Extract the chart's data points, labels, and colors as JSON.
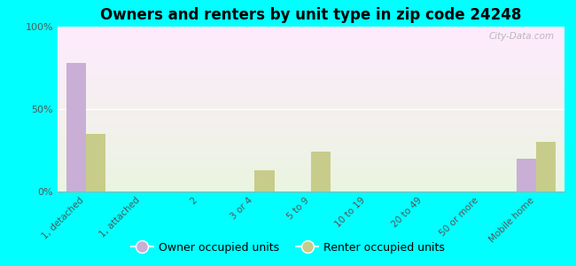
{
  "title": "Owners and renters by unit type in zip code 24248",
  "categories": [
    "1, detached",
    "1, attached",
    "2",
    "3 or 4",
    "5 to 9",
    "10 to 19",
    "20 to 49",
    "50 or more",
    "Mobile home"
  ],
  "owner_values": [
    78,
    0,
    0,
    0,
    0,
    0,
    0,
    0,
    20
  ],
  "renter_values": [
    35,
    0,
    0,
    13,
    24,
    0,
    0,
    0,
    30
  ],
  "owner_color": "#c9aed6",
  "renter_color": "#c8cc8a",
  "bg_color": "#00ffff",
  "ylim": [
    0,
    100
  ],
  "yticks": [
    0,
    50,
    100
  ],
  "ytick_labels": [
    "0%",
    "50%",
    "100%"
  ],
  "legend_owner": "Owner occupied units",
  "legend_renter": "Renter occupied units",
  "bar_width": 0.35,
  "watermark": "City-Data.com"
}
